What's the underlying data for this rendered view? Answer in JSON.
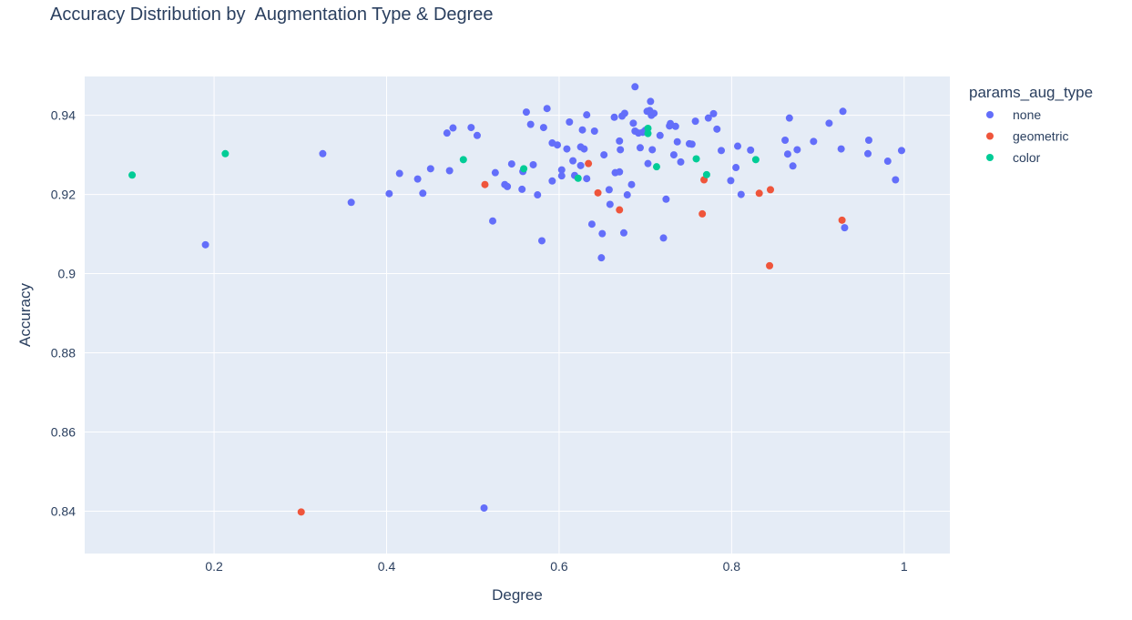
{
  "chart_data": {
    "type": "scatter",
    "title": "Accuracy Distribution by  Augmentation Type & Degree",
    "xlabel": "Degree",
    "ylabel": "Accuracy",
    "xlim": [
      0.05,
      1.053
    ],
    "ylim": [
      0.8293,
      0.9498
    ],
    "x_ticks": [
      {
        "value": 0.2,
        "label": "0.2"
      },
      {
        "value": 0.4,
        "label": "0.4"
      },
      {
        "value": 0.6,
        "label": "0.6"
      },
      {
        "value": 0.8,
        "label": "0.8"
      },
      {
        "value": 1.0,
        "label": "1"
      }
    ],
    "y_ticks": [
      {
        "value": 0.84,
        "label": "0.84"
      },
      {
        "value": 0.86,
        "label": "0.86"
      },
      {
        "value": 0.88,
        "label": "0.88"
      },
      {
        "value": 0.9,
        "label": "0.9"
      },
      {
        "value": 0.92,
        "label": "0.92"
      },
      {
        "value": 0.94,
        "label": "0.94"
      }
    ],
    "grid": true,
    "legend": {
      "title": "params_aug_type",
      "position": "top-right"
    },
    "series": [
      {
        "name": "none",
        "color": "#636efa",
        "points": [
          [
            0.19,
            0.9073
          ],
          [
            0.326,
            0.9303
          ],
          [
            0.359,
            0.918
          ],
          [
            0.403,
            0.9202
          ],
          [
            0.415,
            0.9253
          ],
          [
            0.436,
            0.9239
          ],
          [
            0.442,
            0.9203
          ],
          [
            0.451,
            0.9265
          ],
          [
            0.47,
            0.9355
          ],
          [
            0.473,
            0.926
          ],
          [
            0.477,
            0.9368
          ],
          [
            0.498,
            0.9369
          ],
          [
            0.505,
            0.9349
          ],
          [
            0.513,
            0.8408
          ],
          [
            0.523,
            0.9133
          ],
          [
            0.526,
            0.9255
          ],
          [
            0.537,
            0.9225
          ],
          [
            0.54,
            0.922
          ],
          [
            0.545,
            0.9277
          ],
          [
            0.557,
            0.9213
          ],
          [
            0.558,
            0.9258
          ],
          [
            0.562,
            0.9408
          ],
          [
            0.567,
            0.9377
          ],
          [
            0.57,
            0.9275
          ],
          [
            0.575,
            0.9199
          ],
          [
            0.58,
            0.9083
          ],
          [
            0.582,
            0.9369
          ],
          [
            0.586,
            0.9417
          ],
          [
            0.592,
            0.933
          ],
          [
            0.592,
            0.9234
          ],
          [
            0.598,
            0.9325
          ],
          [
            0.603,
            0.9262
          ],
          [
            0.603,
            0.9247
          ],
          [
            0.609,
            0.9315
          ],
          [
            0.612,
            0.9383
          ],
          [
            0.616,
            0.9285
          ],
          [
            0.618,
            0.9248
          ],
          [
            0.625,
            0.9273
          ],
          [
            0.625,
            0.932
          ],
          [
            0.627,
            0.9363
          ],
          [
            0.629,
            0.9315
          ],
          [
            0.632,
            0.9401
          ],
          [
            0.632,
            0.924
          ],
          [
            0.638,
            0.9125
          ],
          [
            0.641,
            0.936
          ],
          [
            0.649,
            0.904
          ],
          [
            0.65,
            0.9101
          ],
          [
            0.652,
            0.93
          ],
          [
            0.658,
            0.9212
          ],
          [
            0.659,
            0.9175
          ],
          [
            0.664,
            0.9395
          ],
          [
            0.665,
            0.9255
          ],
          [
            0.67,
            0.9257
          ],
          [
            0.67,
            0.9335
          ],
          [
            0.671,
            0.9313
          ],
          [
            0.673,
            0.9398
          ],
          [
            0.675,
            0.9103
          ],
          [
            0.676,
            0.9405
          ],
          [
            0.679,
            0.9199
          ],
          [
            0.684,
            0.9225
          ],
          [
            0.686,
            0.938
          ],
          [
            0.688,
            0.9472
          ],
          [
            0.688,
            0.936
          ],
          [
            0.692,
            0.9355
          ],
          [
            0.694,
            0.9318
          ],
          [
            0.697,
            0.9357
          ],
          [
            0.7,
            0.9362
          ],
          [
            0.702,
            0.941
          ],
          [
            0.703,
            0.9278
          ],
          [
            0.705,
            0.9412
          ],
          [
            0.706,
            0.9435
          ],
          [
            0.707,
            0.94
          ],
          [
            0.708,
            0.9313
          ],
          [
            0.71,
            0.9405
          ],
          [
            0.717,
            0.9349
          ],
          [
            0.721,
            0.909
          ],
          [
            0.724,
            0.9188
          ],
          [
            0.728,
            0.9373
          ],
          [
            0.729,
            0.9379
          ],
          [
            0.733,
            0.93
          ],
          [
            0.735,
            0.9372
          ],
          [
            0.737,
            0.9333
          ],
          [
            0.741,
            0.9282
          ],
          [
            0.751,
            0.9328
          ],
          [
            0.754,
            0.9327
          ],
          [
            0.758,
            0.9385
          ],
          [
            0.773,
            0.9393
          ],
          [
            0.779,
            0.9404
          ],
          [
            0.783,
            0.9365
          ],
          [
            0.788,
            0.9311
          ],
          [
            0.799,
            0.9235
          ],
          [
            0.805,
            0.9268
          ],
          [
            0.807,
            0.9322
          ],
          [
            0.811,
            0.92
          ],
          [
            0.822,
            0.9312
          ],
          [
            0.862,
            0.9337
          ],
          [
            0.865,
            0.9302
          ],
          [
            0.867,
            0.9393
          ],
          [
            0.871,
            0.9272
          ],
          [
            0.876,
            0.9313
          ],
          [
            0.895,
            0.9334
          ],
          [
            0.913,
            0.938
          ],
          [
            0.927,
            0.9315
          ],
          [
            0.929,
            0.941
          ],
          [
            0.931,
            0.9116
          ],
          [
            0.958,
            0.9303
          ],
          [
            0.959,
            0.9337
          ],
          [
            0.981,
            0.9284
          ],
          [
            0.99,
            0.9237
          ],
          [
            0.997,
            0.9311
          ]
        ]
      },
      {
        "name": "geometric",
        "color": "#ef553b",
        "points": [
          [
            0.301,
            0.8398
          ],
          [
            0.514,
            0.9225
          ],
          [
            0.634,
            0.9278
          ],
          [
            0.645,
            0.9204
          ],
          [
            0.67,
            0.9161
          ],
          [
            0.766,
            0.9151
          ],
          [
            0.768,
            0.9237
          ],
          [
            0.832,
            0.9203
          ],
          [
            0.844,
            0.902
          ],
          [
            0.845,
            0.9212
          ],
          [
            0.928,
            0.9135
          ]
        ]
      },
      {
        "name": "color",
        "color": "#00cc96",
        "points": [
          [
            0.105,
            0.9249
          ],
          [
            0.213,
            0.9303
          ],
          [
            0.489,
            0.9288
          ],
          [
            0.559,
            0.9265
          ],
          [
            0.622,
            0.9241
          ],
          [
            0.703,
            0.9367
          ],
          [
            0.703,
            0.9354
          ],
          [
            0.713,
            0.927
          ],
          [
            0.759,
            0.929
          ],
          [
            0.771,
            0.925
          ],
          [
            0.828,
            0.9288
          ]
        ]
      }
    ]
  }
}
